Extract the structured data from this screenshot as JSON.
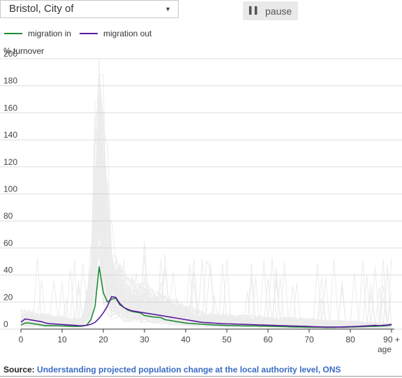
{
  "controls": {
    "area_select_value": "Bristol, City of",
    "dropdown_arrow": "▼",
    "pause_label": "pause",
    "pause_icon": "pause-icon"
  },
  "legend": {
    "in_label": "migration in",
    "in_color": "#1e8a32",
    "out_label": "migration out",
    "out_color": "#5a1a9e"
  },
  "source": {
    "label": "Source:",
    "link_text": "Understanding projected population change at the local authority level, ONS"
  },
  "chart_data": {
    "type": "line",
    "ylabel": "% turnover",
    "xlabel": "age",
    "xlim": [
      0,
      90
    ],
    "ylim": [
      0,
      200
    ],
    "x_ticks": [
      "0",
      "10",
      "20",
      "30",
      "40",
      "50",
      "60",
      "70",
      "80",
      "90 +"
    ],
    "y_ticks": [
      "0",
      "20",
      "40",
      "60",
      "80",
      "100",
      "120",
      "140",
      "160",
      "180",
      "200"
    ],
    "grid": true,
    "legend_position": "top-left",
    "series": [
      {
        "name": "migration in",
        "color": "#1e8a32",
        "x": [
          0,
          1,
          2,
          3,
          4,
          5,
          6,
          7,
          8,
          9,
          10,
          11,
          12,
          13,
          14,
          15,
          16,
          17,
          18,
          19,
          20,
          21,
          22,
          23,
          24,
          25,
          26,
          27,
          28,
          29,
          30,
          31,
          32,
          33,
          34,
          35,
          36,
          37,
          38,
          39,
          40,
          41,
          42,
          43,
          44,
          45,
          46,
          47,
          48,
          49,
          50,
          51,
          52,
          53,
          54,
          55,
          56,
          57,
          58,
          59,
          60,
          61,
          62,
          63,
          64,
          65,
          66,
          67,
          68,
          69,
          70,
          71,
          72,
          73,
          74,
          75,
          76,
          77,
          78,
          79,
          80,
          81,
          82,
          83,
          84,
          85,
          86,
          87,
          88,
          89,
          90
        ],
        "values": [
          3,
          4.5,
          4.5,
          4,
          3.5,
          3,
          2.5,
          2.5,
          2.5,
          2.5,
          2.3,
          2.2,
          2.1,
          2,
          2,
          2.2,
          3,
          7,
          17,
          46,
          27,
          20,
          22,
          23,
          18,
          16,
          14,
          13,
          12.5,
          12,
          10,
          9.5,
          9,
          8.8,
          8.5,
          7,
          6.5,
          6,
          5.5,
          5,
          4.5,
          4.2,
          4,
          3.8,
          3.6,
          3.4,
          3.2,
          3,
          2.9,
          2.8,
          2.7,
          2.6,
          2.5,
          2.5,
          2.4,
          2.4,
          2.3,
          2.3,
          2.2,
          2.2,
          2.1,
          2,
          2,
          1.9,
          1.8,
          1.7,
          1.6,
          1.5,
          1.5,
          1.4,
          1.4,
          1.3,
          1.3,
          1.3,
          1.2,
          1.2,
          1.2,
          1.3,
          1.3,
          1.4,
          1.5,
          1.6,
          1.7,
          1.8,
          1.9,
          2,
          2,
          2.2,
          2.4,
          2.6,
          3
        ]
      },
      {
        "name": "migration out",
        "color": "#5a1a9e",
        "x": [
          0,
          1,
          2,
          3,
          4,
          5,
          6,
          7,
          8,
          9,
          10,
          11,
          12,
          13,
          14,
          15,
          16,
          17,
          18,
          19,
          20,
          21,
          22,
          23,
          24,
          25,
          26,
          27,
          28,
          29,
          30,
          31,
          32,
          33,
          34,
          35,
          36,
          37,
          38,
          39,
          40,
          41,
          42,
          43,
          44,
          45,
          46,
          47,
          48,
          49,
          50,
          51,
          52,
          53,
          54,
          55,
          56,
          57,
          58,
          59,
          60,
          61,
          62,
          63,
          64,
          65,
          66,
          67,
          68,
          69,
          70,
          71,
          72,
          73,
          74,
          75,
          76,
          77,
          78,
          79,
          80,
          81,
          82,
          83,
          84,
          85,
          86,
          87,
          88,
          89,
          90
        ],
        "values": [
          5,
          7.5,
          7,
          6.5,
          6,
          5.5,
          4.5,
          4,
          3.8,
          3.6,
          3.4,
          3.2,
          3,
          2.8,
          2.6,
          2.5,
          2.8,
          3.5,
          5,
          8,
          12,
          17,
          24,
          23.5,
          19,
          16,
          14.5,
          13.5,
          13,
          12.5,
          12,
          11.5,
          11,
          10.5,
          10,
          9.5,
          9,
          8.5,
          8,
          7.5,
          7,
          6.5,
          6,
          5.5,
          5,
          4.8,
          4.6,
          4.4,
          4.2,
          4,
          3.9,
          3.8,
          3.7,
          3.6,
          3.5,
          3.4,
          3.3,
          3.2,
          3.1,
          3,
          2.9,
          2.8,
          2.7,
          2.6,
          2.5,
          2.4,
          2.3,
          2.2,
          2.1,
          2,
          1.9,
          1.8,
          1.7,
          1.6,
          1.5,
          1.5,
          1.5,
          1.5,
          1.6,
          1.7,
          1.8,
          1.9,
          2,
          2.2,
          2.4,
          2.6,
          2.8,
          2.6,
          2.8,
          3,
          3.5
        ]
      }
    ]
  }
}
